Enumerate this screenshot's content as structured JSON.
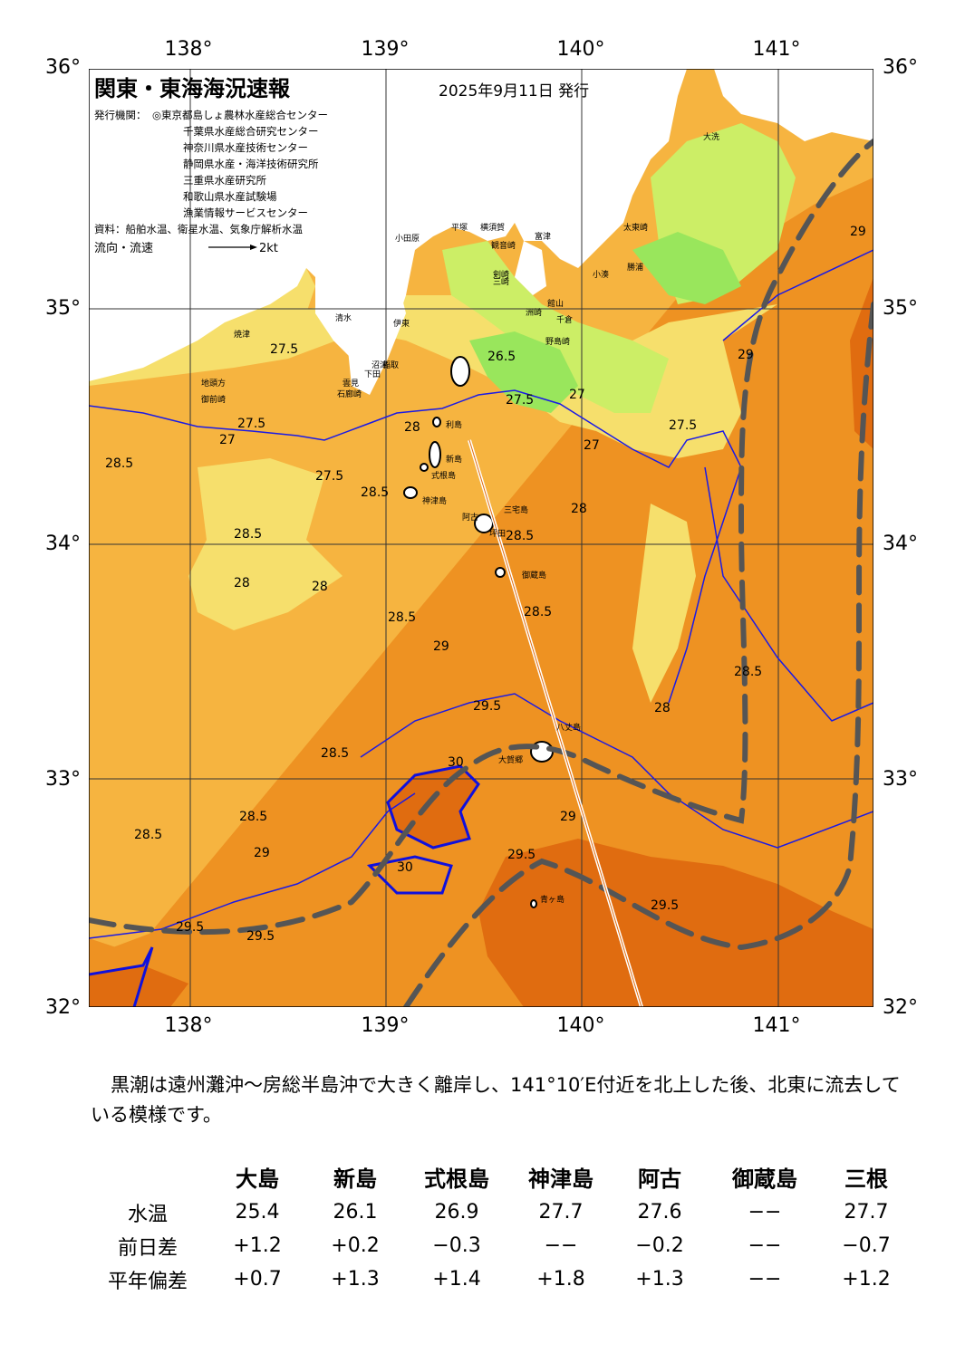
{
  "title": "関東・東海海況速報",
  "date": "2025年9月11日 発行",
  "issuers_label": "発行機関：",
  "issuers": [
    "◎東京都島しょ農林水産総合センター",
    "千葉県水産総合研究センター",
    "神奈川県水産技術センター",
    "静岡県水産・海洋技術研究所",
    "三重県水産研究所",
    "和歌山県水産試験場",
    "漁業情報サービスセンター"
  ],
  "source": "資料：船舶水温、衛星水温、気象庁解析水温",
  "flow_label": "流向・流速",
  "flow_scale": "2kt",
  "lon_labels": [
    "138°",
    "139°",
    "140°",
    "141°"
  ],
  "lat_labels": [
    "36°",
    "35°",
    "34°",
    "33°",
    "32°"
  ],
  "colors": {
    "t_le26": "#99e65c",
    "t_26_27": "#ccee66",
    "t_27_28": "#f6df6c",
    "t_28_29": "#f6b440",
    "t_29_30": "#ee9222",
    "t_ge30": "#e06c10",
    "land": "#ffffff",
    "contour": "#1a1ae6",
    "kuroshio": "#555555"
  },
  "place_names": [
    "大洗",
    "太東崎",
    "小湊",
    "勝浦",
    "館山",
    "千倉",
    "野島崎",
    "洲崎",
    "剣崎",
    "三崎",
    "横須賀",
    "観音崎",
    "富津",
    "平塚",
    "小田原",
    "伊東",
    "稲取",
    "下田",
    "石廊崎",
    "雲見",
    "御前崎",
    "地頭方",
    "焼津",
    "清水",
    "沼津",
    "利島",
    "新島",
    "式根島",
    "神津島",
    "三宅島",
    "御蔵島",
    "八丈島",
    "大賀郷",
    "青ヶ島",
    "阿古",
    "坪田"
  ],
  "contour_labels": [
    "26.5",
    "27",
    "27.5",
    "28",
    "28.5",
    "29",
    "29.5",
    "30"
  ],
  "note": "黒潮は遠州灘沖～房総半島沖で大きく離岸し、141°10′E付近を北上した後、北東に流去している模様です。",
  "table": {
    "headers": [
      "大島",
      "新島",
      "式根島",
      "神津島",
      "阿古",
      "御蔵島",
      "三根"
    ],
    "rows": [
      {
        "label": "水温",
        "values": [
          "25.4",
          "26.1",
          "26.9",
          "27.7",
          "27.6",
          "−−",
          "27.7"
        ]
      },
      {
        "label": "前日差",
        "values": [
          "+1.2",
          "+0.2",
          "−0.3",
          "−−",
          "−0.2",
          "−−",
          "−0.7"
        ]
      },
      {
        "label": "平年偏差",
        "values": [
          "+0.7",
          "+1.3",
          "+1.4",
          "+1.8",
          "+1.3",
          "−−",
          "+1.2"
        ]
      }
    ]
  }
}
